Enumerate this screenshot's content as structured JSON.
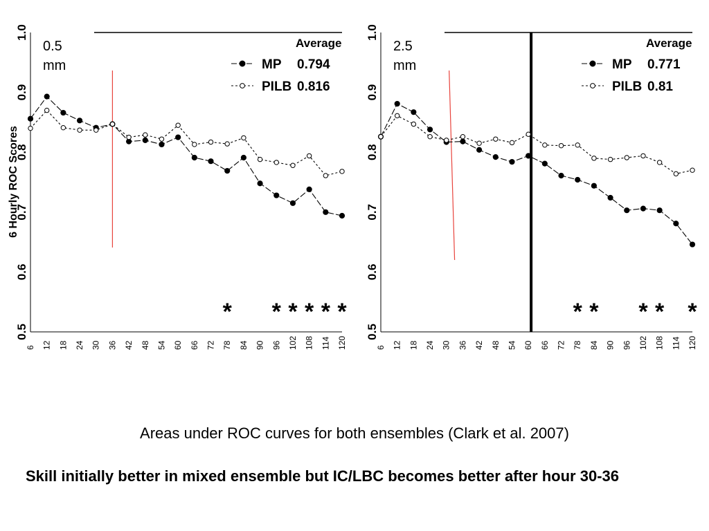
{
  "chart_data": [
    {
      "type": "line",
      "panel_label": [
        "0.5",
        "mm"
      ],
      "ylabel": "6 Hourly ROC Scores",
      "xlabel": "",
      "ylim": [
        0.5,
        1.0
      ],
      "y_ticks": [
        "0.5",
        "0.6",
        "0.7",
        "0.8",
        "0.9",
        "1.0"
      ],
      "x_ticks": [
        "6",
        "12",
        "18",
        "24",
        "30",
        "36",
        "42",
        "48",
        "54",
        "60",
        "66",
        "72",
        "78",
        "84",
        "90",
        "96",
        "102",
        "108",
        "114",
        "120"
      ],
      "x": [
        6,
        12,
        18,
        24,
        30,
        36,
        42,
        48,
        54,
        60,
        66,
        72,
        78,
        84,
        90,
        96,
        102,
        108,
        114,
        120
      ],
      "legend_header": "Average",
      "series": [
        {
          "name": "MP",
          "average": "0.794",
          "marker": "filled",
          "values": [
            0.856,
            0.893,
            0.866,
            0.853,
            0.841,
            0.847,
            0.818,
            0.82,
            0.813,
            0.825,
            0.791,
            0.785,
            0.769,
            0.791,
            0.748,
            0.728,
            0.715,
            0.738,
            0.7,
            0.694
          ]
        },
        {
          "name": "PILB",
          "average": "0.816",
          "marker": "open",
          "values": [
            0.84,
            0.87,
            0.841,
            0.837,
            0.837,
            0.847,
            0.825,
            0.829,
            0.822,
            0.845,
            0.813,
            0.817,
            0.814,
            0.824,
            0.788,
            0.783,
            0.778,
            0.794,
            0.761,
            0.768
          ]
        }
      ],
      "significance_x": [
        78,
        96,
        102,
        108,
        114,
        120
      ],
      "star_glyph": "*",
      "red_line_x": [
        36,
        36
      ],
      "black_vline_x": null,
      "colors": {
        "red_line": "#e8433c",
        "axis": "#000000"
      }
    },
    {
      "type": "line",
      "panel_label": [
        "2.5",
        "mm"
      ],
      "ylabel": "",
      "xlabel": "",
      "ylim": [
        0.5,
        1.0
      ],
      "y_ticks": [
        "0.5",
        "0.6",
        "0.7",
        "0.8",
        "0.9",
        "1.0"
      ],
      "x_ticks": [
        "6",
        "12",
        "18",
        "24",
        "30",
        "36",
        "42",
        "48",
        "54",
        "60",
        "66",
        "72",
        "78",
        "84",
        "90",
        "96",
        "102",
        "108",
        "114",
        "120"
      ],
      "x": [
        6,
        12,
        18,
        24,
        30,
        36,
        42,
        48,
        54,
        60,
        66,
        72,
        78,
        84,
        90,
        96,
        102,
        108,
        114,
        120
      ],
      "legend_header": "Average",
      "series": [
        {
          "name": "MP",
          "average": "0.771",
          "marker": "filled",
          "values": [
            0.826,
            0.881,
            0.867,
            0.838,
            0.817,
            0.818,
            0.804,
            0.792,
            0.784,
            0.794,
            0.781,
            0.761,
            0.754,
            0.744,
            0.724,
            0.703,
            0.706,
            0.703,
            0.681,
            0.646
          ]
        },
        {
          "name": "PILB",
          "average": "0.81",
          "marker": "open",
          "values": [
            0.826,
            0.861,
            0.847,
            0.826,
            0.82,
            0.826,
            0.815,
            0.822,
            0.816,
            0.83,
            0.812,
            0.811,
            0.812,
            0.79,
            0.788,
            0.791,
            0.794,
            0.783,
            0.764,
            0.77
          ]
        }
      ],
      "significance_x": [
        78,
        84,
        102,
        108,
        120
      ],
      "star_glyph": "*",
      "red_line_x": [
        31,
        33
      ],
      "black_vline_x": 61,
      "colors": {
        "red_line": "#e8433c",
        "axis": "#000000"
      }
    }
  ],
  "caption": "Areas under ROC curves for both ensembles (Clark et al. 2007)",
  "conclusion": "Skill initially better in mixed ensemble but IC/LBC becomes better after hour 30-36"
}
